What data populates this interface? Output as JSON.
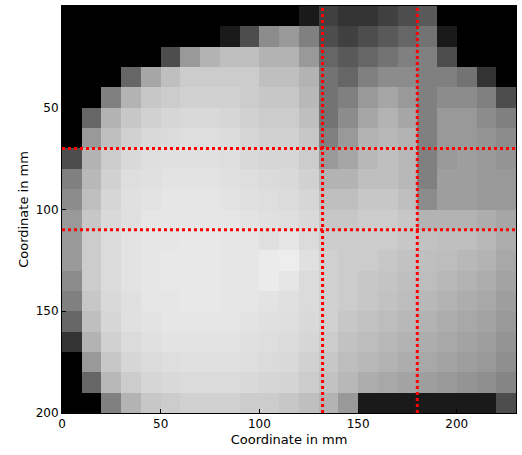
{
  "chart_data": {
    "type": "heatmap",
    "xlabel": "Coordinate in mm",
    "ylabel": "Coordinate in mm",
    "x": [
      5,
      15,
      25,
      35,
      45,
      55,
      65,
      75,
      85,
      95,
      105,
      115,
      125,
      135,
      145,
      155,
      165,
      175,
      185,
      195,
      205,
      215,
      225
    ],
    "y": [
      5,
      15,
      25,
      35,
      45,
      55,
      65,
      75,
      85,
      95,
      105,
      115,
      125,
      135,
      145,
      155,
      165,
      175,
      185,
      195
    ],
    "cells": [
      [
        0,
        0,
        0,
        0,
        0,
        0,
        0,
        0,
        0,
        0,
        0,
        0,
        0.1,
        0.25,
        0.2,
        0.2,
        0.25,
        0.3,
        0.35,
        0,
        0,
        0,
        0
      ],
      [
        0,
        0,
        0,
        0,
        0,
        0,
        0,
        0,
        0.1,
        0.3,
        0.55,
        0.6,
        0.5,
        0.3,
        0.25,
        0.3,
        0.35,
        0.4,
        0.45,
        0.1,
        0,
        0,
        0
      ],
      [
        0,
        0,
        0,
        0,
        0,
        0.3,
        0.6,
        0.7,
        0.75,
        0.75,
        0.7,
        0.7,
        0.6,
        0.4,
        0.35,
        0.4,
        0.45,
        0.5,
        0.5,
        0.3,
        0,
        0,
        0
      ],
      [
        0,
        0,
        0,
        0.4,
        0.65,
        0.75,
        0.8,
        0.8,
        0.8,
        0.8,
        0.75,
        0.75,
        0.7,
        0.45,
        0.4,
        0.5,
        0.55,
        0.55,
        0.5,
        0.5,
        0.45,
        0.2,
        0
      ],
      [
        0,
        0,
        0.5,
        0.7,
        0.78,
        0.8,
        0.82,
        0.82,
        0.82,
        0.8,
        0.78,
        0.78,
        0.72,
        0.45,
        0.5,
        0.6,
        0.65,
        0.6,
        0.5,
        0.55,
        0.55,
        0.5,
        0.3
      ],
      [
        0,
        0.4,
        0.7,
        0.78,
        0.82,
        0.84,
        0.85,
        0.85,
        0.84,
        0.82,
        0.8,
        0.8,
        0.75,
        0.45,
        0.55,
        0.65,
        0.7,
        0.65,
        0.5,
        0.6,
        0.6,
        0.55,
        0.5
      ],
      [
        0,
        0.6,
        0.75,
        0.82,
        0.85,
        0.86,
        0.87,
        0.87,
        0.86,
        0.84,
        0.82,
        0.82,
        0.78,
        0.5,
        0.6,
        0.7,
        0.72,
        0.7,
        0.5,
        0.6,
        0.6,
        0.58,
        0.55
      ],
      [
        0.3,
        0.7,
        0.8,
        0.85,
        0.87,
        0.88,
        0.88,
        0.88,
        0.87,
        0.85,
        0.84,
        0.84,
        0.8,
        0.6,
        0.65,
        0.72,
        0.75,
        0.72,
        0.5,
        0.6,
        0.62,
        0.6,
        0.58
      ],
      [
        0.5,
        0.72,
        0.82,
        0.87,
        0.88,
        0.89,
        0.89,
        0.89,
        0.88,
        0.87,
        0.86,
        0.85,
        0.82,
        0.7,
        0.7,
        0.75,
        0.75,
        0.72,
        0.5,
        0.62,
        0.62,
        0.6,
        0.6
      ],
      [
        0.55,
        0.75,
        0.84,
        0.88,
        0.89,
        0.9,
        0.9,
        0.9,
        0.89,
        0.88,
        0.87,
        0.86,
        0.84,
        0.75,
        0.75,
        0.78,
        0.78,
        0.75,
        0.55,
        0.62,
        0.62,
        0.6,
        0.6
      ],
      [
        0.6,
        0.78,
        0.85,
        0.88,
        0.9,
        0.9,
        0.9,
        0.9,
        0.9,
        0.89,
        0.88,
        0.87,
        0.85,
        0.78,
        0.78,
        0.8,
        0.8,
        0.78,
        0.7,
        0.7,
        0.7,
        0.68,
        0.65
      ],
      [
        0.6,
        0.8,
        0.86,
        0.89,
        0.9,
        0.9,
        0.91,
        0.91,
        0.9,
        0.9,
        0.88,
        0.9,
        0.86,
        0.8,
        0.8,
        0.8,
        0.8,
        0.78,
        0.76,
        0.75,
        0.75,
        0.72,
        0.68
      ],
      [
        0.6,
        0.8,
        0.86,
        0.89,
        0.9,
        0.91,
        0.91,
        0.91,
        0.9,
        0.9,
        0.92,
        0.93,
        0.88,
        0.82,
        0.8,
        0.8,
        0.78,
        0.76,
        0.75,
        0.74,
        0.72,
        0.7,
        0.66
      ],
      [
        0.55,
        0.8,
        0.86,
        0.89,
        0.9,
        0.91,
        0.91,
        0.91,
        0.9,
        0.9,
        0.92,
        0.9,
        0.86,
        0.82,
        0.8,
        0.78,
        0.77,
        0.75,
        0.74,
        0.72,
        0.7,
        0.68,
        0.64
      ],
      [
        0.5,
        0.78,
        0.85,
        0.88,
        0.9,
        0.9,
        0.91,
        0.91,
        0.9,
        0.9,
        0.89,
        0.88,
        0.86,
        0.82,
        0.8,
        0.78,
        0.76,
        0.74,
        0.72,
        0.7,
        0.68,
        0.66,
        0.62
      ],
      [
        0.4,
        0.75,
        0.84,
        0.88,
        0.89,
        0.9,
        0.9,
        0.9,
        0.9,
        0.89,
        0.88,
        0.87,
        0.85,
        0.82,
        0.78,
        0.76,
        0.74,
        0.72,
        0.7,
        0.68,
        0.66,
        0.64,
        0.6
      ],
      [
        0.2,
        0.7,
        0.82,
        0.86,
        0.88,
        0.89,
        0.89,
        0.89,
        0.89,
        0.88,
        0.87,
        0.86,
        0.84,
        0.8,
        0.76,
        0.74,
        0.72,
        0.7,
        0.68,
        0.66,
        0.64,
        0.62,
        0.58
      ],
      [
        0,
        0.6,
        0.78,
        0.84,
        0.86,
        0.87,
        0.88,
        0.88,
        0.88,
        0.87,
        0.86,
        0.85,
        0.82,
        0.78,
        0.74,
        0.72,
        0.7,
        0.68,
        0.66,
        0.64,
        0.62,
        0.6,
        0.56
      ],
      [
        0,
        0.4,
        0.72,
        0.8,
        0.84,
        0.85,
        0.86,
        0.86,
        0.86,
        0.85,
        0.84,
        0.83,
        0.8,
        0.76,
        0.72,
        0.68,
        0.66,
        0.64,
        0.62,
        0.6,
        0.58,
        0.56,
        0.52
      ],
      [
        0,
        0,
        0.5,
        0.7,
        0.78,
        0.8,
        0.82,
        0.82,
        0.82,
        0.8,
        0.8,
        0.78,
        0.75,
        0.7,
        0.6,
        0.1,
        0.1,
        0.1,
        0.1,
        0.1,
        0.1,
        0.1,
        0.3
      ]
    ],
    "zlim": [
      0,
      1
    ],
    "xlim": [
      0,
      230
    ],
    "ylim": [
      200,
      0
    ],
    "xticks": [
      0,
      50,
      100,
      150,
      200
    ],
    "yticks": [
      0,
      50,
      100,
      150,
      200
    ],
    "vlines": [
      132,
      180
    ],
    "hlines": [
      70,
      110
    ],
    "color": "#ff0000",
    "line_style": "dot"
  }
}
